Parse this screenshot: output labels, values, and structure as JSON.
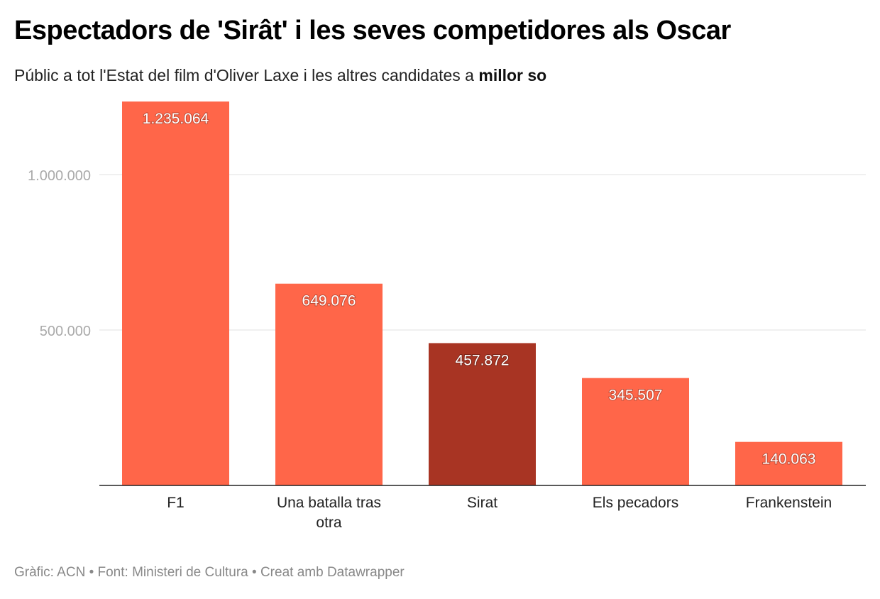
{
  "chart_data": {
    "type": "bar",
    "title": "Espectadors de 'Sirât' i les seves competidores als Oscar",
    "subtitle_prefix": "Públic a tot l'Estat del film d'Oliver Laxe i les altres candidates a ",
    "subtitle_bold": "millor so",
    "categories": [
      "F1",
      "Una batalla tras otra",
      "Sirat",
      "Els pecadors",
      "Frankenstein"
    ],
    "values": [
      1235064,
      649076,
      457872,
      345507,
      140063
    ],
    "value_labels": [
      "1.235.064",
      "649.076",
      "457.872",
      "345.507",
      "140.063"
    ],
    "highlight": "Sirat",
    "y_ticks": [
      500000,
      1000000
    ],
    "y_tick_labels": [
      "500.000",
      "1.000.000"
    ],
    "ylim": [
      0,
      1250000
    ],
    "grid": true,
    "colors": {
      "bar": "#ff6649",
      "highlight": "#a83423"
    }
  },
  "footer": {
    "text": "Gràfic: ACN • Font: Ministeri de Cultura  • Creat amb Datawrapper"
  }
}
